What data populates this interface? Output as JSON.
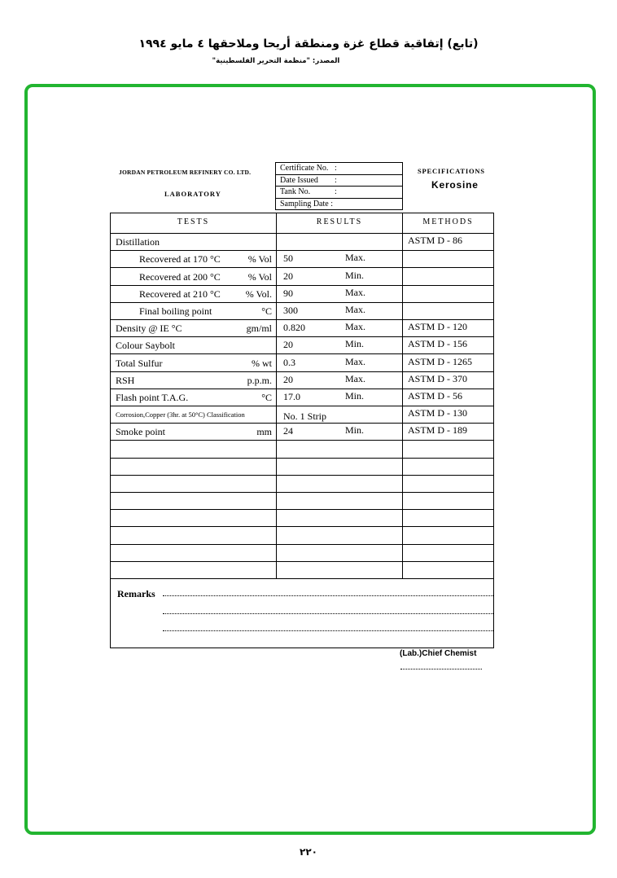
{
  "header": {
    "title_ar": "(تابع) إتفاقية قطاع غزة ومنطقة أريحا وملاحقها ٤ مايو ١٩٩٤",
    "source_ar": "المصدر: \"منظمة التحرير الفلسطينية\""
  },
  "form": {
    "company": "JORDAN PETROLEUM REFINERY CO. LTD.",
    "department": "LABORATORY",
    "spec_label": "SPECIFICATIONS",
    "product": "Kerosine",
    "cert_fields": [
      {
        "label": "Certificate No.",
        "sep": ":"
      },
      {
        "label": "Date Issued",
        "sep": ":"
      },
      {
        "label": "Tank No.",
        "sep": ":"
      },
      {
        "label": "Sampling Date :",
        "sep": ""
      }
    ],
    "columns": [
      "TESTS",
      "RESULTS",
      "METHODS"
    ],
    "rows": [
      {
        "test": "Distillation",
        "unit": "",
        "value": "",
        "limit": "",
        "method": "ASTM  D - 86"
      },
      {
        "test": "Recovered at 170  °C",
        "unit": "% Vol",
        "value": "50",
        "limit": "Max.",
        "method": "",
        "indent": true
      },
      {
        "test": "Recovered at 200  °C",
        "unit": "% Vol",
        "value": "20",
        "limit": "Min.",
        "method": "",
        "indent": true
      },
      {
        "test": "Recovered at 210  °C",
        "unit": "% Vol.",
        "value": "90",
        "limit": "Max.",
        "method": "",
        "indent": true
      },
      {
        "test": "Final  boiling point",
        "unit": "°C",
        "value": "300",
        "limit": "Max.",
        "method": "",
        "indent": true
      },
      {
        "test": "Density  @ IE °C",
        "unit": "gm/ml",
        "value": "0.820",
        "limit": "Max.",
        "method": "ASTM  D - 120"
      },
      {
        "test": "Colour Saybolt",
        "unit": "",
        "value": "20",
        "limit": "Min.",
        "method": "ASTM  D - 156"
      },
      {
        "test": "Total Sulfur",
        "unit": "% wt",
        "value": "0.3",
        "limit": "Max.",
        "method": "ASTM  D - 1265"
      },
      {
        "test": "RSH",
        "unit": "p.p.m.",
        "value": "20",
        "limit": "Max.",
        "method": "ASTM  D - 370"
      },
      {
        "test": "Flash point      T.A.G.",
        "unit": "°C",
        "value": "17.0",
        "limit": "Min.",
        "method": "ASTM  D - 56"
      },
      {
        "test": "Corrosion,Copper (3hr. at 50°C) Classification",
        "unit": "",
        "value": "No.  1  Strip",
        "limit": "",
        "method": "ASTM  D - 130",
        "small": true
      },
      {
        "test": "Smoke point",
        "unit": "mm",
        "value": "24",
        "limit": "Min.",
        "method": "ASTM  D - 189"
      }
    ],
    "empty_rows": 8,
    "remarks_label": "Remarks",
    "signature_label": "(Lab.)Chief Chemist"
  },
  "page_number": "٢٢٠",
  "colors": {
    "frame": "#22b530"
  }
}
